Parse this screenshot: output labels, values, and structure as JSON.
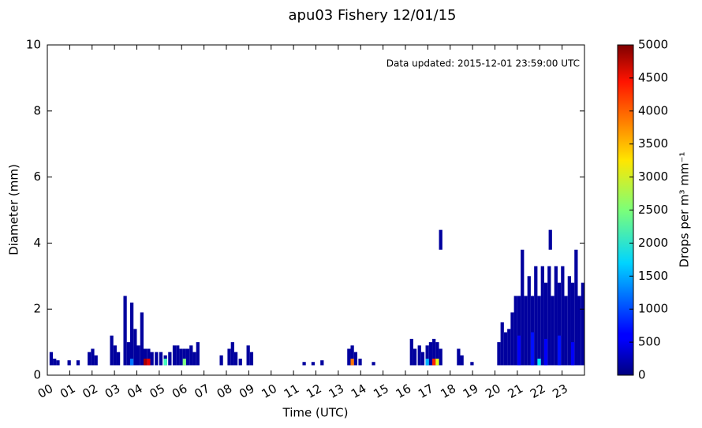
{
  "chart_data": {
    "type": "heatmap",
    "title": "apu03 Fishery 12/01/15",
    "annotation": "Data updated:  2015-12-01 23:59:00 UTC",
    "xlabel": "Time (UTC)",
    "ylabel": "Diameter (mm)",
    "colorbar_label": "Drops per m³  mm⁻¹",
    "xlim": [
      0,
      24
    ],
    "xticks": [
      {
        "value": 0,
        "label": "00"
      },
      {
        "value": 1,
        "label": "01"
      },
      {
        "value": 2,
        "label": "02"
      },
      {
        "value": 3,
        "label": "03"
      },
      {
        "value": 4,
        "label": "04"
      },
      {
        "value": 5,
        "label": "05"
      },
      {
        "value": 6,
        "label": "06"
      },
      {
        "value": 7,
        "label": "07"
      },
      {
        "value": 8,
        "label": "08"
      },
      {
        "value": 9,
        "label": "09"
      },
      {
        "value": 10,
        "label": "10"
      },
      {
        "value": 11,
        "label": "11"
      },
      {
        "value": 12,
        "label": "12"
      },
      {
        "value": 13,
        "label": "13"
      },
      {
        "value": 14,
        "label": "14"
      },
      {
        "value": 15,
        "label": "15"
      },
      {
        "value": 16,
        "label": "16"
      },
      {
        "value": 17,
        "label": "17"
      },
      {
        "value": 18,
        "label": "18"
      },
      {
        "value": 19,
        "label": "19"
      },
      {
        "value": 20,
        "label": "20"
      },
      {
        "value": 21,
        "label": "21"
      },
      {
        "value": 22,
        "label": "22"
      },
      {
        "value": 23,
        "label": "23"
      }
    ],
    "ylim": [
      0,
      10
    ],
    "yticks": [
      0,
      2,
      4,
      6,
      8,
      10
    ],
    "clim": [
      0,
      5000
    ],
    "cticks": [
      0,
      500,
      1000,
      1500,
      2000,
      2500,
      3000,
      3500,
      4000,
      4500,
      5000
    ],
    "colormap": "jet",
    "cells": [
      [
        0.1,
        0.3,
        0.7,
        150
      ],
      [
        0.25,
        0.3,
        0.5,
        150
      ],
      [
        0.4,
        0.3,
        0.45,
        150
      ],
      [
        0.9,
        0.3,
        0.45,
        150
      ],
      [
        1.3,
        0.3,
        0.45,
        150
      ],
      [
        1.8,
        0.3,
        0.7,
        150
      ],
      [
        1.95,
        0.3,
        0.8,
        150
      ],
      [
        2.1,
        0.3,
        0.6,
        150
      ],
      [
        2.8,
        0.3,
        1.2,
        150
      ],
      [
        2.95,
        0.3,
        0.9,
        150
      ],
      [
        3.1,
        0.3,
        0.7,
        150
      ],
      [
        3.4,
        0.3,
        2.4,
        150
      ],
      [
        3.55,
        0.3,
        1.0,
        150
      ],
      [
        3.7,
        0.3,
        2.2,
        150
      ],
      [
        3.85,
        0.3,
        1.4,
        150
      ],
      [
        4.0,
        0.3,
        0.9,
        150
      ],
      [
        4.15,
        0.3,
        1.9,
        150
      ],
      [
        4.3,
        0.3,
        0.8,
        150
      ],
      [
        4.45,
        0.3,
        0.8,
        150
      ],
      [
        4.6,
        0.3,
        0.7,
        150
      ],
      [
        4.8,
        0.3,
        0.7,
        150
      ],
      [
        5.0,
        0.3,
        0.7,
        150
      ],
      [
        5.2,
        0.3,
        0.6,
        150
      ],
      [
        5.4,
        0.3,
        0.7,
        150
      ],
      [
        5.6,
        0.3,
        0.9,
        150
      ],
      [
        5.75,
        0.3,
        0.9,
        150
      ],
      [
        5.9,
        0.3,
        0.8,
        150
      ],
      [
        6.05,
        0.3,
        0.8,
        150
      ],
      [
        6.2,
        0.3,
        0.8,
        150
      ],
      [
        6.35,
        0.3,
        0.9,
        150
      ],
      [
        6.5,
        0.3,
        0.7,
        150
      ],
      [
        6.65,
        0.3,
        1.0,
        150
      ],
      [
        7.7,
        0.3,
        0.6,
        150
      ],
      [
        8.05,
        0.3,
        0.8,
        150
      ],
      [
        8.2,
        0.3,
        1.0,
        150
      ],
      [
        8.35,
        0.3,
        0.7,
        150
      ],
      [
        8.55,
        0.3,
        0.5,
        150
      ],
      [
        8.9,
        0.3,
        0.9,
        150
      ],
      [
        9.05,
        0.3,
        0.7,
        150
      ],
      [
        11.4,
        0.3,
        0.4,
        150
      ],
      [
        11.8,
        0.3,
        0.4,
        150
      ],
      [
        12.2,
        0.3,
        0.45,
        150
      ],
      [
        13.4,
        0.3,
        0.8,
        150
      ],
      [
        13.55,
        0.3,
        0.9,
        150
      ],
      [
        13.7,
        0.3,
        0.7,
        150
      ],
      [
        13.9,
        0.3,
        0.5,
        150
      ],
      [
        14.5,
        0.3,
        0.4,
        150
      ],
      [
        16.2,
        0.3,
        1.1,
        150
      ],
      [
        16.35,
        0.3,
        0.8,
        150
      ],
      [
        16.55,
        0.3,
        0.9,
        150
      ],
      [
        16.7,
        0.3,
        0.7,
        150
      ],
      [
        16.9,
        0.3,
        0.9,
        150
      ],
      [
        17.05,
        0.3,
        1.0,
        150
      ],
      [
        17.2,
        0.3,
        1.1,
        150
      ],
      [
        17.35,
        0.3,
        1.0,
        150
      ],
      [
        17.5,
        0.3,
        0.8,
        150
      ],
      [
        18.3,
        0.3,
        0.8,
        150
      ],
      [
        18.45,
        0.3,
        0.6,
        150
      ],
      [
        18.9,
        0.3,
        0.4,
        150
      ],
      [
        20.1,
        0.3,
        1.0,
        150
      ],
      [
        20.25,
        0.3,
        1.6,
        150
      ],
      [
        20.4,
        0.3,
        1.3,
        150
      ],
      [
        20.55,
        0.3,
        1.4,
        150
      ],
      [
        20.7,
        0.3,
        1.9,
        150
      ],
      [
        20.85,
        0.3,
        2.4,
        150
      ],
      [
        21.0,
        0.3,
        2.4,
        150
      ],
      [
        21.15,
        0.3,
        3.8,
        150
      ],
      [
        21.3,
        0.3,
        2.4,
        150
      ],
      [
        21.45,
        0.3,
        3.0,
        150
      ],
      [
        21.6,
        0.3,
        2.4,
        150
      ],
      [
        21.75,
        0.3,
        3.3,
        150
      ],
      [
        21.9,
        0.3,
        2.4,
        150
      ],
      [
        22.05,
        0.3,
        3.3,
        150
      ],
      [
        22.2,
        0.3,
        2.8,
        150
      ],
      [
        22.35,
        0.3,
        3.3,
        150
      ],
      [
        22.5,
        0.3,
        2.4,
        150
      ],
      [
        22.65,
        0.3,
        3.3,
        150
      ],
      [
        22.8,
        0.3,
        2.8,
        150
      ],
      [
        22.95,
        0.3,
        3.3,
        150
      ],
      [
        23.1,
        0.3,
        2.4,
        150
      ],
      [
        23.25,
        0.3,
        3.0,
        150
      ],
      [
        23.4,
        0.3,
        2.8,
        150
      ],
      [
        23.55,
        0.3,
        3.8,
        150
      ],
      [
        23.7,
        0.3,
        2.4,
        150
      ],
      [
        23.85,
        0.3,
        2.8,
        150
      ],
      [
        17.5,
        3.8,
        4.4,
        150
      ],
      [
        22.4,
        3.8,
        4.4,
        150
      ],
      [
        21.0,
        0.3,
        1.2,
        600
      ],
      [
        21.6,
        0.3,
        1.3,
        700
      ],
      [
        22.2,
        0.3,
        1.1,
        600
      ],
      [
        22.8,
        0.3,
        1.2,
        700
      ],
      [
        23.4,
        0.3,
        1.0,
        600
      ],
      [
        3.7,
        0.3,
        0.5,
        1200
      ],
      [
        4.3,
        0.3,
        0.5,
        4800
      ],
      [
        4.45,
        0.3,
        0.5,
        4500
      ],
      [
        5.2,
        0.3,
        0.5,
        2200
      ],
      [
        6.05,
        0.3,
        0.5,
        2500
      ],
      [
        13.55,
        0.3,
        0.5,
        3800
      ],
      [
        16.9,
        0.3,
        0.5,
        1500
      ],
      [
        17.2,
        0.3,
        0.5,
        4200
      ],
      [
        17.35,
        0.3,
        0.5,
        3000
      ],
      [
        21.9,
        0.3,
        0.5,
        1800
      ]
    ]
  }
}
